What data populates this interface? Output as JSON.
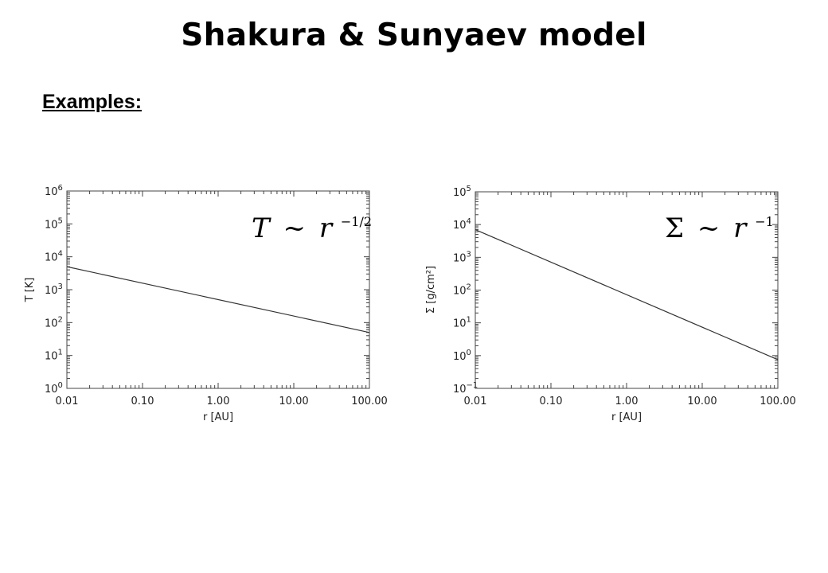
{
  "slide": {
    "title": "Shakura & Sunyaev model",
    "subtitle": "Examples:"
  },
  "chart_data": [
    {
      "type": "line",
      "xscale": "log",
      "yscale": "log",
      "xlabel": "r [AU]",
      "ylabel": "T [K]",
      "xlim": [
        0.01,
        100
      ],
      "ylim": [
        1,
        1000000
      ],
      "xticks": [
        "0.01",
        "0.10",
        "1.00",
        "10.00",
        "100.00"
      ],
      "ytick_bases": [
        "10",
        "10",
        "10",
        "10",
        "10",
        "10",
        "10"
      ],
      "ytick_exponents": [
        "0",
        "1",
        "2",
        "3",
        "4",
        "5",
        "6"
      ],
      "annotation": {
        "symbol": "T",
        "relation": "~",
        "base": "r",
        "exponent": "−1/2"
      },
      "series": [
        {
          "x": [
            0.01,
            100
          ],
          "y": [
            5000,
            50
          ]
        }
      ]
    },
    {
      "type": "line",
      "xscale": "log",
      "yscale": "log",
      "xlabel": "r [AU]",
      "ylabel": "Σ [g/cm²]",
      "xlim": [
        0.01,
        100
      ],
      "ylim": [
        0.1,
        100000
      ],
      "xticks": [
        "0.01",
        "0.10",
        "1.00",
        "10.00",
        "100.00"
      ],
      "ytick_bases": [
        "10",
        "10",
        "10",
        "10",
        "10",
        "10",
        "10"
      ],
      "ytick_exponents": [
        "−1",
        "0",
        "1",
        "2",
        "3",
        "4",
        "5"
      ],
      "annotation": {
        "symbol": "Σ",
        "relation": "~",
        "base": "r",
        "exponent": "−1"
      },
      "series": [
        {
          "x": [
            0.01,
            100
          ],
          "y": [
            7000,
            0.75
          ]
        }
      ]
    }
  ]
}
